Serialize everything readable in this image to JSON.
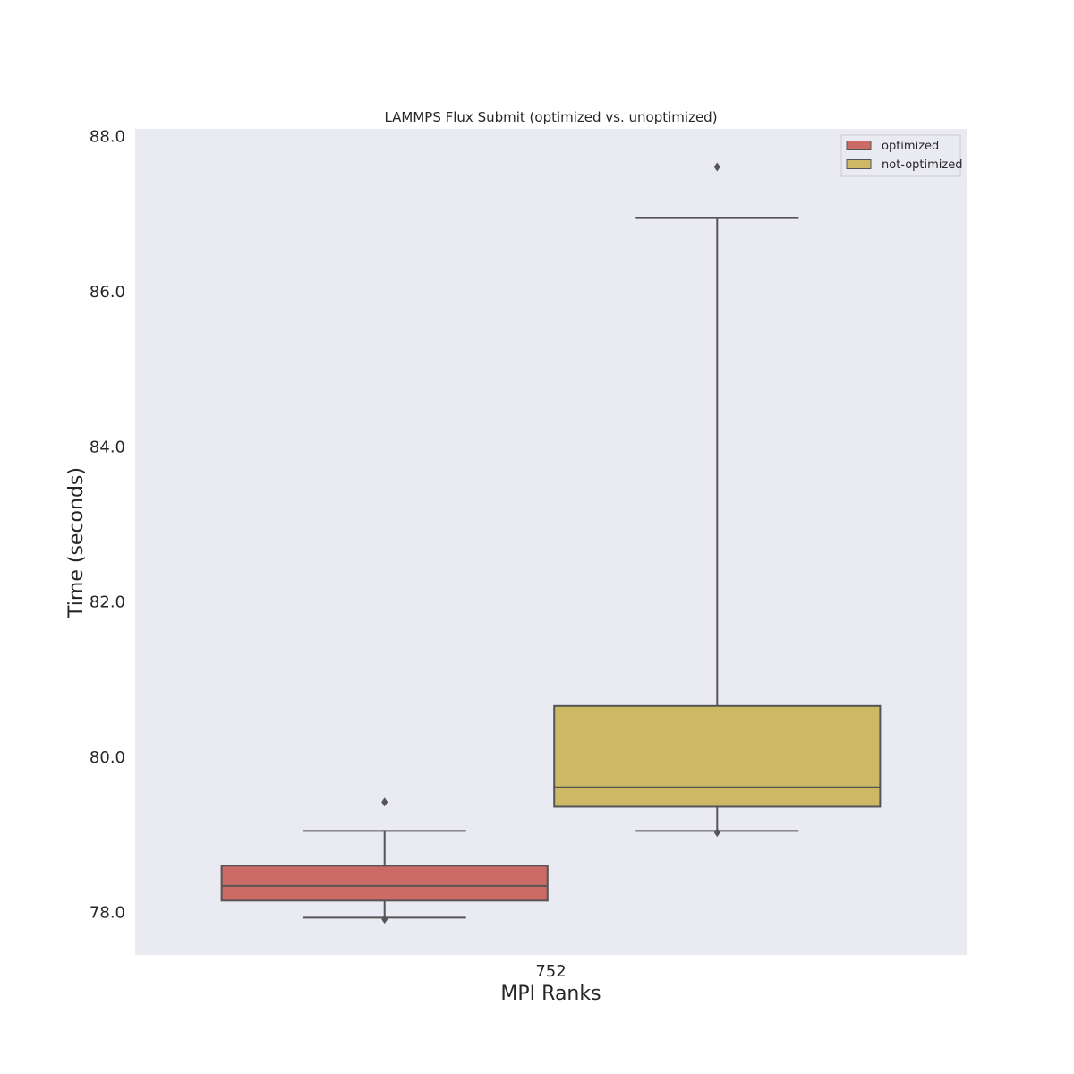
{
  "chart_data": {
    "type": "box",
    "title": "LAMMPS Flux Submit (optimized vs. unoptimized)",
    "xlabel": "MPI Ranks",
    "ylabel": "Time (seconds)",
    "categories": [
      "752"
    ],
    "ylim": [
      77.45,
      88.1
    ],
    "yticks": [
      78.0,
      80.0,
      82.0,
      84.0,
      86.0,
      88.0
    ],
    "ytick_labels": [
      "78.0",
      "80.0",
      "82.0",
      "84.0",
      "86.0",
      "88.0"
    ],
    "grid": false,
    "legend_position": "top-right",
    "series": [
      {
        "name": "optimized",
        "color": "#cc6b65",
        "whisker_low": 77.93,
        "q1": 78.15,
        "median": 78.34,
        "q3": 78.6,
        "whisker_high": 79.05,
        "outliers": [
          79.42,
          77.91
        ]
      },
      {
        "name": "not-optimized",
        "color": "#cdb866",
        "whisker_low": 79.05,
        "q1": 79.36,
        "median": 79.61,
        "q3": 80.66,
        "whisker_high": 86.95,
        "outliers": [
          87.61,
          79.03
        ]
      }
    ],
    "colors": {
      "background": "#eaeaf2",
      "line": "#555555"
    }
  }
}
